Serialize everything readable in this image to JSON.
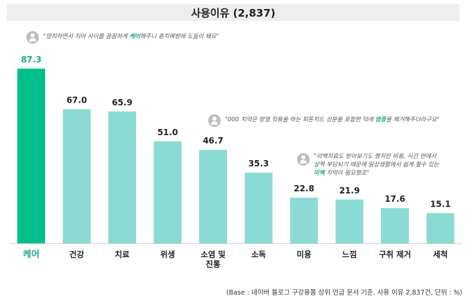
{
  "header": {
    "title": "사용이유 (2,837)"
  },
  "quotes": [
    {
      "pre": "\"양치하면서 치아 사이를 꼼꼼하게 ",
      "hl": "케어",
      "post": "해주니 충치예방에 도움이 돼요\""
    },
    {
      "pre": "\"000 치약은 항염 작용을 하는 피톤치드 성분을 포함한 덕에 ",
      "hl": "염증",
      "post": "을 제거해주더라구요\""
    },
    {
      "line1": "\"미백치료도 받아보기도 했지만 비용, 시간 면에서",
      "line2": "살짝 부담되기 때문에 일상생활에서 쉽게 할수 있는",
      "hl": "미백",
      "post": " 치약이 필요했죠\""
    }
  ],
  "footer": {
    "note": "(Base : 네이버 블로그 구강용품 상위 언급 문서 기준. 사용 이유 2,837건, 단위 : %)"
  },
  "colors": {
    "highlight_bar": "#00bf8c",
    "bar": "#8adbd3",
    "highlight_label": "#1aa98a"
  },
  "chart_data": {
    "type": "bar",
    "title": "사용이유 (2,837)",
    "categories": [
      "케어",
      "건강",
      "치료",
      "위생",
      "소염 및 진통",
      "소독",
      "미용",
      "느낌",
      "구취 제거",
      "세척"
    ],
    "values": [
      87.3,
      67.0,
      65.9,
      51.0,
      46.7,
      35.3,
      22.8,
      21.9,
      17.6,
      15.1
    ],
    "value_labels": [
      "87.3",
      "67.0",
      "65.9",
      "51.0",
      "46.7",
      "35.3",
      "22.8",
      "21.9",
      "17.6",
      "15.1"
    ],
    "highlight_index": 0,
    "ylim": [
      0,
      100
    ],
    "grid": false,
    "xlabel": "",
    "ylabel": ""
  }
}
